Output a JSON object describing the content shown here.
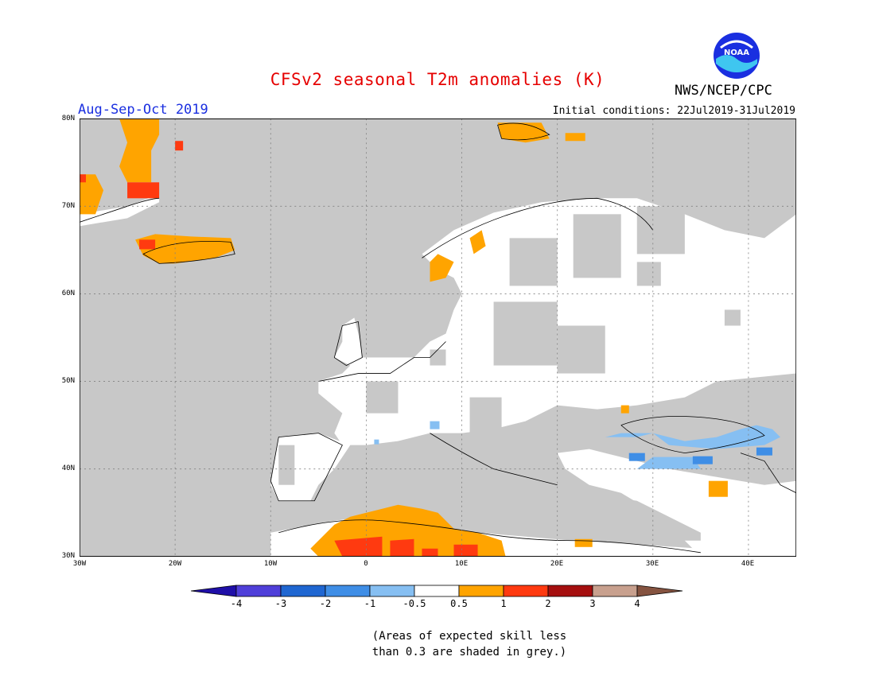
{
  "title": "CFSv2 seasonal T2m anomalies (K)",
  "period": "Aug-Sep-Oct 2019",
  "initial_conditions": "Initial conditions: 22Jul2019-31Jul2019",
  "agency": "NWS/NCEP/CPC",
  "logo_text": "NOAA",
  "note_line1": "(Areas of expected skill less",
  "note_line2": "than 0.3 are shaded in grey.)",
  "lat_labels": [
    "80N",
    "70N",
    "60N",
    "50N",
    "40N",
    "30N"
  ],
  "lon_labels": [
    "30W",
    "20W",
    "10W",
    "0",
    "10E",
    "20E",
    "30E",
    "40E"
  ],
  "colorbar": {
    "ticks": [
      "-4",
      "-3",
      "-2",
      "-1",
      "-0.5",
      "0.5",
      "1",
      "2",
      "3",
      "4"
    ],
    "colors": [
      "#1f0fa8",
      "#4f3fd9",
      "#1f66d1",
      "#3f8ee6",
      "#86bff2",
      "#ffffff",
      "#ffa400",
      "#ff3a10",
      "#a50f0f",
      "#c8a08e",
      "#855340"
    ]
  },
  "map_colors": {
    "low_skill_grey": "#c8c8c8",
    "land": "#ffffff",
    "warm_0.5_1": "#ffa400",
    "warm_1_2": "#ff3a10",
    "cool_-0.5_-1": "#86bff2",
    "cool_-1_-2": "#3f8ee6"
  }
}
